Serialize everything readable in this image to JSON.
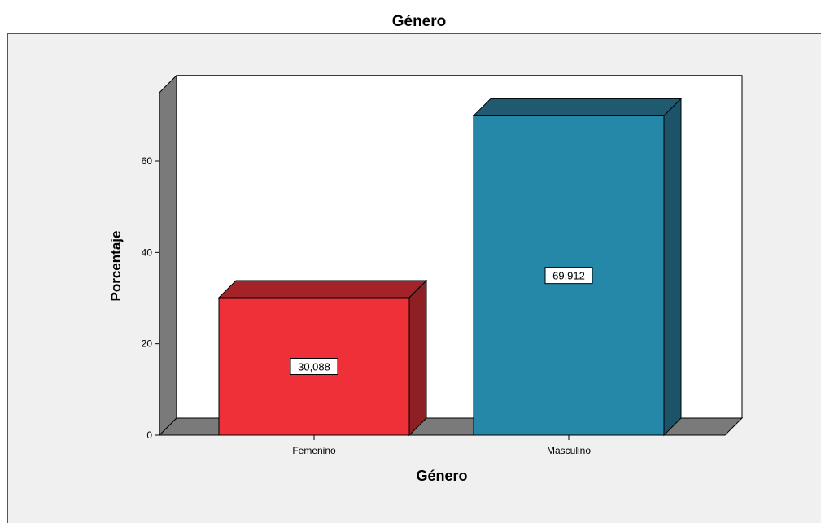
{
  "chart_data": {
    "type": "bar",
    "title": "Género",
    "xlabel": "Género",
    "ylabel": "Porcentaje",
    "categories": [
      "Femenino",
      "Masculino"
    ],
    "values": [
      30.088,
      69.912
    ],
    "data_labels": [
      "30,088",
      "69,912"
    ],
    "yticks": [
      0,
      20,
      40,
      60
    ],
    "ytick_labels": [
      "0",
      "20",
      "40",
      "60"
    ],
    "ylim": [
      0,
      75
    ],
    "grid": false,
    "legend": "none",
    "style": "3d",
    "colors": {
      "bars": [
        "#f03038",
        "#2588a9"
      ],
      "bar_sides": [
        "#8e2024",
        "#1c5368"
      ],
      "bar_tops": [
        "#a32329",
        "#1f5a71"
      ],
      "walls": "#7a7a7a",
      "plot_background": "#ffffff",
      "frame_background": "#f0f0f0"
    }
  }
}
